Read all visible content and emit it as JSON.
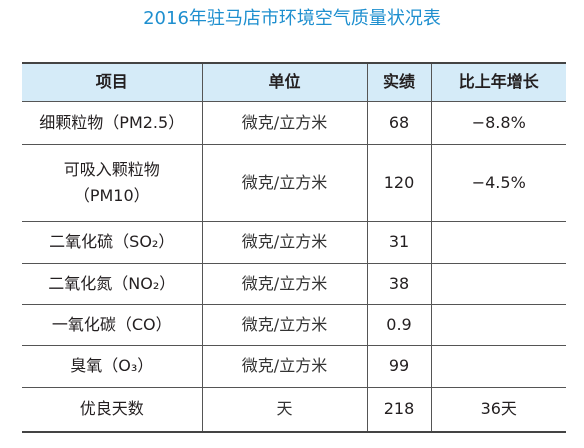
{
  "title": "2016年驻马店市环境空气质量状况表",
  "table": {
    "header": [
      "项目",
      "单位",
      "实绩",
      "比上年增长"
    ],
    "rows": [
      [
        [
          "细颗粒物（PM2.5）"
        ],
        "微克/立方米",
        "68",
        "−8.8%"
      ],
      [
        [
          "可吸入颗粒物",
          "（PM10）"
        ],
        "微克/立方米",
        "120",
        "−4.5%"
      ],
      [
        [
          "二氧化硫（SO₂）"
        ],
        "微克/立方米",
        "31",
        null
      ],
      [
        [
          "二氧化氮（NO₂）"
        ],
        "微克/立方米",
        "38",
        null
      ],
      [
        [
          "一氧化碳（CO）"
        ],
        "微克/立方米",
        "0.9",
        null
      ],
      [
        [
          "臭氧（O₃）"
        ],
        "微克/立方米",
        "99",
        null
      ],
      [
        [
          "优良天数"
        ],
        "天",
        "218",
        "36天"
      ]
    ]
  }
}
